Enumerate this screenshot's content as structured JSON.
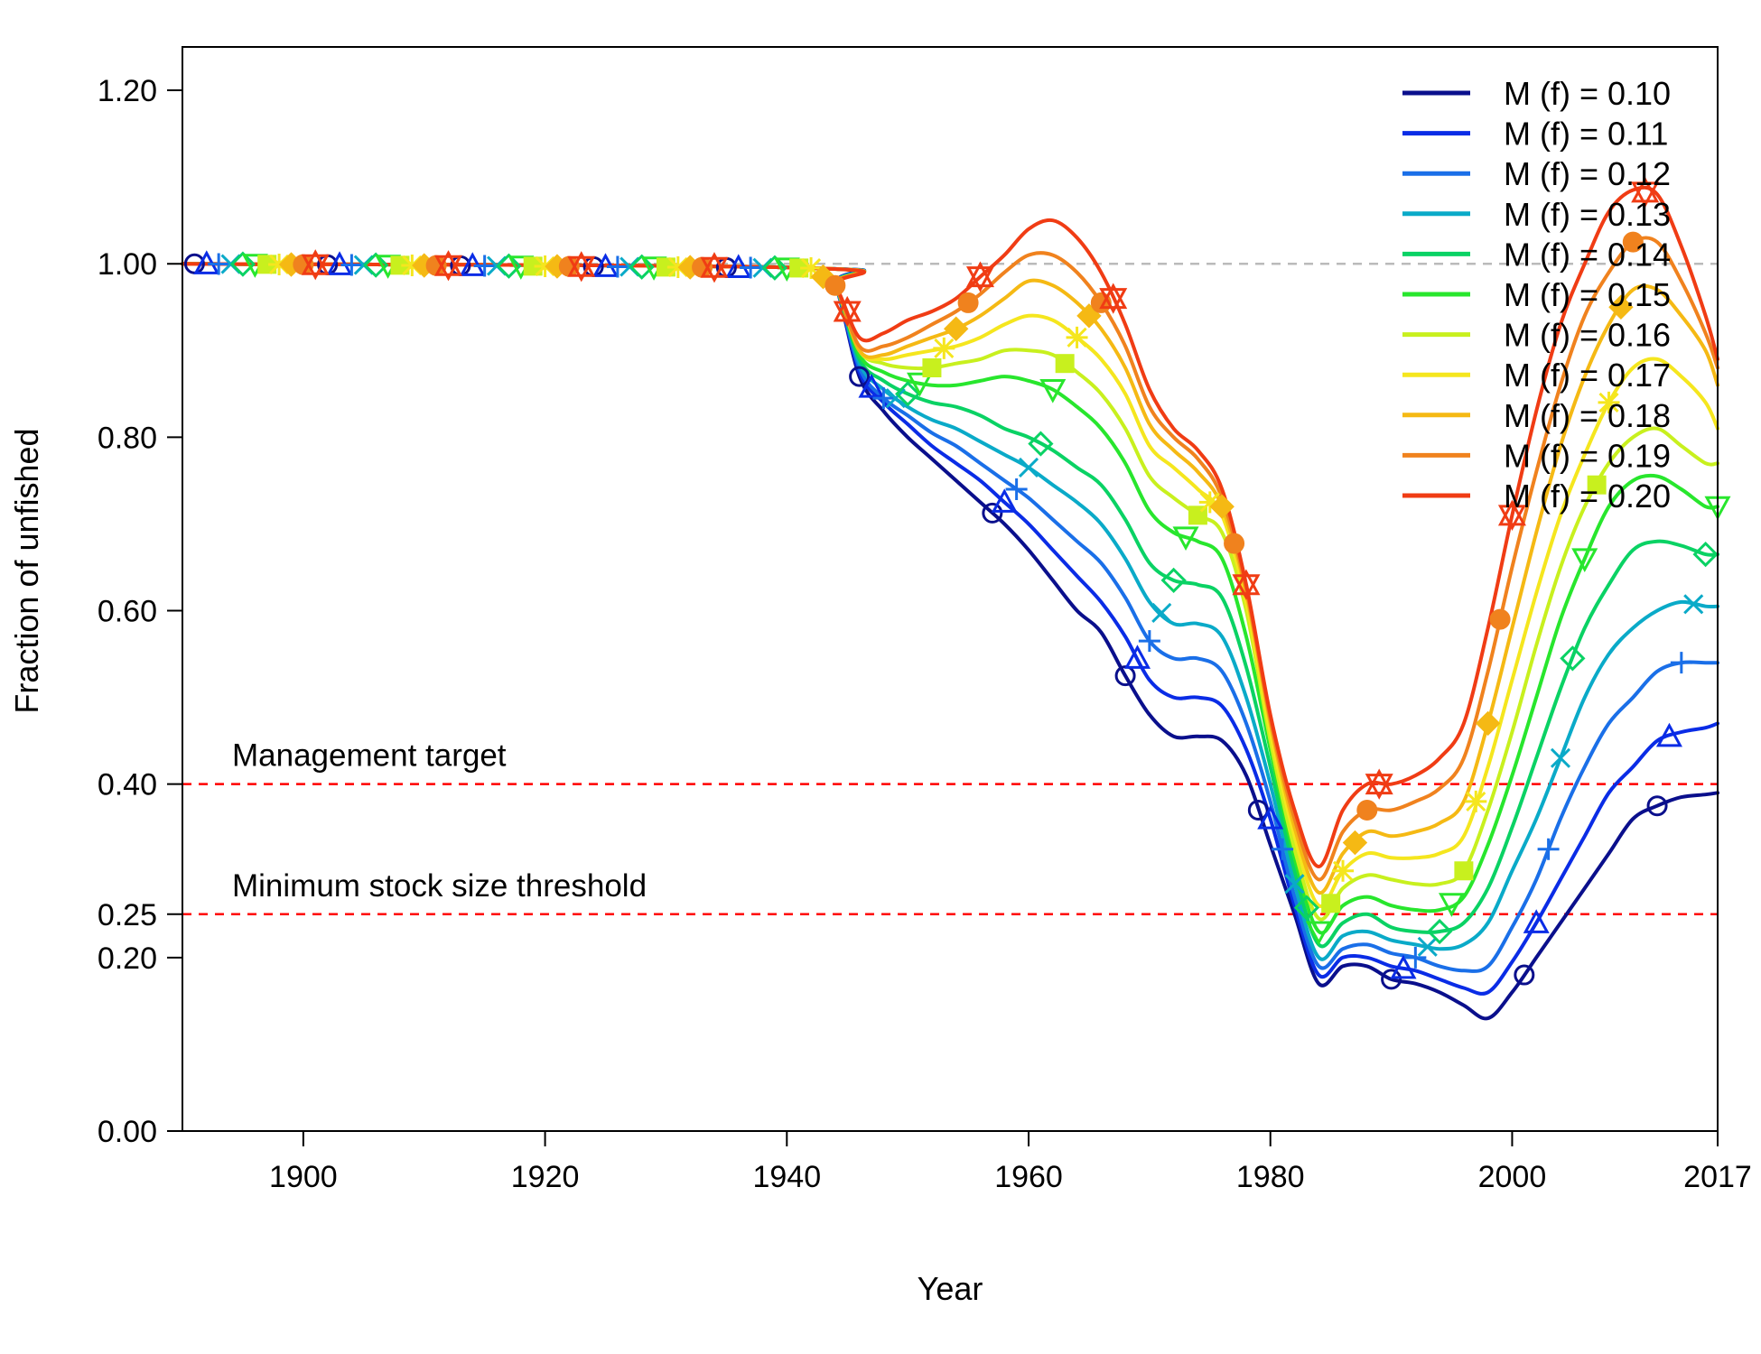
{
  "chart_data": {
    "type": "line",
    "title": "",
    "xlabel": "Year",
    "ylabel": "Fraction of unfished",
    "xlim": [
      1890,
      2017
    ],
    "ylim": [
      0,
      1.25
    ],
    "x_ticks": [
      1900,
      1920,
      1940,
      1960,
      1980,
      2000,
      2017
    ],
    "x_tick_labels": [
      "1900",
      "1920",
      "1940",
      "1960",
      "1980",
      "2000",
      "2017"
    ],
    "y_ticks": [
      0,
      0.2,
      0.25,
      0.4,
      0.6,
      0.8,
      1.0,
      1.2
    ],
    "y_tick_labels": [
      "0.00",
      "0.20",
      "0.25",
      "0.40",
      "0.60",
      "0.80",
      "1.00",
      "1.20"
    ],
    "grid": false,
    "legend_position": "top-right",
    "reference_lines": [
      {
        "y": 1.0,
        "label": "",
        "color": "#bbbbbb"
      },
      {
        "y": 0.4,
        "label": "Management target",
        "color": "#ff0000"
      },
      {
        "y": 0.25,
        "label": "Minimum stock size threshold",
        "color": "#ff0000"
      }
    ],
    "x": [
      1890,
      1942,
      1944,
      1946,
      1948,
      1950,
      1952,
      1954,
      1956,
      1958,
      1960,
      1962,
      1964,
      1966,
      1968,
      1970,
      1972,
      1974,
      1976,
      1978,
      1980,
      1982,
      1984,
      1986,
      1988,
      1990,
      1992,
      1994,
      1996,
      1998,
      2000,
      2002,
      2004,
      2006,
      2008,
      2010,
      2012,
      2014,
      2016,
      2017
    ],
    "series": [
      {
        "name": "M (f) = 0.10",
        "color": "#0a0f8c",
        "marker": "circle",
        "values": [
          1.0,
          0.995,
          0.975,
          0.87,
          0.83,
          0.8,
          0.775,
          0.75,
          0.725,
          0.7,
          0.67,
          0.635,
          0.6,
          0.575,
          0.525,
          0.48,
          0.455,
          0.455,
          0.45,
          0.41,
          0.33,
          0.25,
          0.17,
          0.19,
          0.19,
          0.175,
          0.17,
          0.16,
          0.145,
          0.13,
          0.16,
          0.2,
          0.24,
          0.28,
          0.32,
          0.36,
          0.375,
          0.385,
          0.388,
          0.39
        ]
      },
      {
        "name": "M (f) = 0.11",
        "color": "#0a2ce6",
        "marker": "triangle-up",
        "values": [
          1.0,
          0.995,
          0.975,
          0.875,
          0.84,
          0.815,
          0.79,
          0.77,
          0.75,
          0.725,
          0.7,
          0.67,
          0.64,
          0.61,
          0.57,
          0.52,
          0.5,
          0.5,
          0.49,
          0.44,
          0.36,
          0.26,
          0.18,
          0.2,
          0.2,
          0.19,
          0.185,
          0.175,
          0.165,
          0.16,
          0.195,
          0.24,
          0.29,
          0.34,
          0.39,
          0.42,
          0.45,
          0.46,
          0.465,
          0.47
        ]
      },
      {
        "name": "M (f) = 0.12",
        "color": "#1a6fe8",
        "marker": "plus",
        "values": [
          1.0,
          0.995,
          0.975,
          0.88,
          0.845,
          0.825,
          0.805,
          0.79,
          0.77,
          0.75,
          0.73,
          0.705,
          0.68,
          0.655,
          0.615,
          0.565,
          0.545,
          0.545,
          0.53,
          0.47,
          0.38,
          0.27,
          0.19,
          0.21,
          0.215,
          0.205,
          0.2,
          0.19,
          0.185,
          0.19,
          0.235,
          0.29,
          0.36,
          0.42,
          0.47,
          0.5,
          0.53,
          0.54,
          0.54,
          0.54
        ]
      },
      {
        "name": "M (f) = 0.13",
        "color": "#0aaac8",
        "marker": "cross",
        "values": [
          1.0,
          0.995,
          0.975,
          0.885,
          0.855,
          0.835,
          0.82,
          0.81,
          0.795,
          0.78,
          0.765,
          0.745,
          0.725,
          0.7,
          0.66,
          0.61,
          0.585,
          0.585,
          0.57,
          0.5,
          0.4,
          0.285,
          0.2,
          0.225,
          0.23,
          0.22,
          0.215,
          0.21,
          0.215,
          0.24,
          0.3,
          0.36,
          0.43,
          0.5,
          0.55,
          0.58,
          0.6,
          0.61,
          0.605,
          0.605
        ]
      },
      {
        "name": "M (f) = 0.14",
        "color": "#0ad264",
        "marker": "diamond",
        "values": [
          1.0,
          0.995,
          0.975,
          0.89,
          0.865,
          0.85,
          0.84,
          0.835,
          0.825,
          0.81,
          0.8,
          0.785,
          0.765,
          0.745,
          0.705,
          0.655,
          0.635,
          0.63,
          0.615,
          0.535,
          0.42,
          0.3,
          0.215,
          0.24,
          0.25,
          0.235,
          0.23,
          0.23,
          0.24,
          0.28,
          0.35,
          0.43,
          0.51,
          0.58,
          0.63,
          0.67,
          0.68,
          0.675,
          0.665,
          0.665
        ]
      },
      {
        "name": "M (f) = 0.15",
        "color": "#28e62d",
        "marker": "triangle-down",
        "values": [
          1.0,
          0.995,
          0.975,
          0.895,
          0.875,
          0.865,
          0.86,
          0.86,
          0.865,
          0.87,
          0.865,
          0.855,
          0.835,
          0.81,
          0.77,
          0.715,
          0.69,
          0.68,
          0.66,
          0.57,
          0.44,
          0.315,
          0.23,
          0.26,
          0.27,
          0.26,
          0.255,
          0.255,
          0.27,
          0.33,
          0.41,
          0.5,
          0.59,
          0.66,
          0.72,
          0.75,
          0.755,
          0.74,
          0.72,
          0.72
        ]
      },
      {
        "name": "M (f) = 0.16",
        "color": "#c8f01e",
        "marker": "square",
        "values": [
          1.0,
          0.995,
          0.975,
          0.9,
          0.885,
          0.88,
          0.88,
          0.885,
          0.89,
          0.9,
          0.9,
          0.895,
          0.875,
          0.85,
          0.81,
          0.755,
          0.73,
          0.71,
          0.69,
          0.6,
          0.45,
          0.325,
          0.245,
          0.28,
          0.295,
          0.29,
          0.285,
          0.285,
          0.3,
          0.37,
          0.46,
          0.56,
          0.65,
          0.72,
          0.77,
          0.8,
          0.81,
          0.79,
          0.77,
          0.77
        ]
      },
      {
        "name": "M (f) = 0.17",
        "color": "#f5e61e",
        "marker": "asterisk",
        "values": [
          1.0,
          0.995,
          0.975,
          0.9,
          0.89,
          0.895,
          0.9,
          0.905,
          0.915,
          0.93,
          0.94,
          0.935,
          0.915,
          0.89,
          0.85,
          0.79,
          0.765,
          0.74,
          0.71,
          0.61,
          0.46,
          0.34,
          0.26,
          0.3,
          0.32,
          0.315,
          0.315,
          0.32,
          0.34,
          0.42,
          0.52,
          0.62,
          0.71,
          0.78,
          0.84,
          0.88,
          0.89,
          0.87,
          0.84,
          0.81
        ]
      },
      {
        "name": "M (f) = 0.18",
        "color": "#f5b914",
        "marker": "diamond-filled",
        "values": [
          1.0,
          0.995,
          0.975,
          0.9,
          0.895,
          0.905,
          0.915,
          0.925,
          0.94,
          0.96,
          0.98,
          0.975,
          0.955,
          0.925,
          0.88,
          0.815,
          0.785,
          0.76,
          0.72,
          0.62,
          0.47,
          0.35,
          0.275,
          0.32,
          0.345,
          0.34,
          0.345,
          0.355,
          0.38,
          0.47,
          0.58,
          0.69,
          0.79,
          0.87,
          0.93,
          0.97,
          0.97,
          0.94,
          0.9,
          0.86
        ]
      },
      {
        "name": "M (f) = 0.19",
        "color": "#f0821e",
        "marker": "circle-filled",
        "values": [
          1.0,
          0.995,
          0.975,
          0.905,
          0.905,
          0.915,
          0.93,
          0.945,
          0.965,
          0.99,
          1.01,
          1.01,
          0.99,
          0.955,
          0.905,
          0.835,
          0.8,
          0.775,
          0.73,
          0.625,
          0.475,
          0.36,
          0.29,
          0.345,
          0.37,
          0.37,
          0.38,
          0.395,
          0.43,
          0.53,
          0.65,
          0.76,
          0.86,
          0.94,
          0.99,
          1.025,
          1.025,
          0.98,
          0.92,
          0.88
        ]
      },
      {
        "name": "M (f) = 0.20",
        "color": "#f03c14",
        "marker": "star",
        "values": [
          1.0,
          0.995,
          0.975,
          0.915,
          0.92,
          0.935,
          0.945,
          0.96,
          0.985,
          1.01,
          1.04,
          1.05,
          1.03,
          0.99,
          0.93,
          0.855,
          0.81,
          0.785,
          0.74,
          0.63,
          0.48,
          0.37,
          0.305,
          0.37,
          0.4,
          0.4,
          0.41,
          0.43,
          0.47,
          0.58,
          0.71,
          0.83,
          0.93,
          1.0,
          1.06,
          1.085,
          1.08,
          1.02,
          0.94,
          0.89
        ]
      }
    ]
  }
}
